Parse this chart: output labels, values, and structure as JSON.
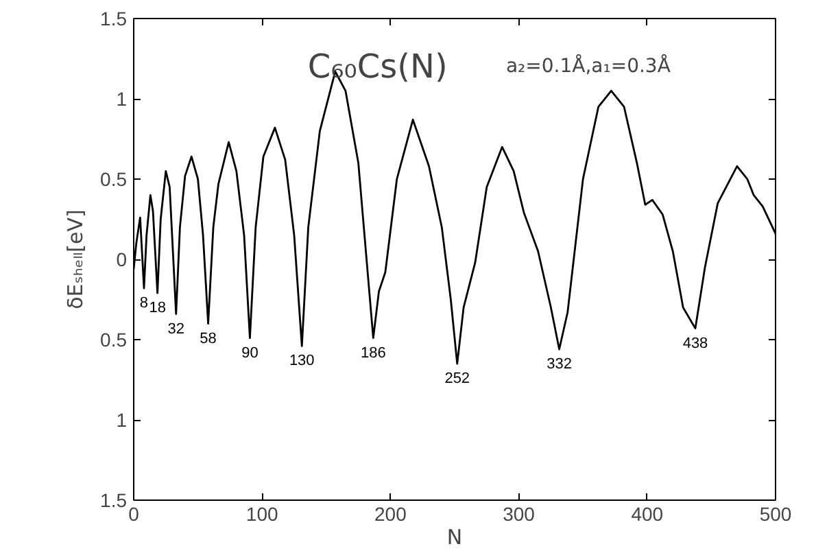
{
  "chart_data": {
    "type": "line",
    "title": "C₆₀Cs(N)",
    "xlabel": "N",
    "ylabel": "δEₛₕₑₗₗ[eV]",
    "xlim": [
      0,
      500
    ],
    "ylim": [
      -1.5,
      1.5
    ],
    "xticks": [
      0,
      100,
      200,
      300,
      400,
      500
    ],
    "yticks": [
      {
        "value": -1.5,
        "label": "1.5"
      },
      {
        "value": -1,
        "label": "1"
      },
      {
        "value": -0.5,
        "label": "0.5"
      },
      0,
      0.5,
      1,
      1.5
    ],
    "grid": false,
    "marker": "none",
    "line_style": "solid",
    "series": [
      {
        "color": "#000000",
        "x": [
          0,
          2,
          5,
          8,
          10,
          13,
          15,
          18.5,
          21,
          25,
          28,
          33,
          36,
          40,
          45,
          50,
          54,
          58,
          62,
          66,
          74,
          80,
          86,
          90.5,
          95,
          101,
          110,
          118,
          125,
          131,
          136,
          145,
          157,
          165,
          175,
          186.6,
          191,
          196,
          205,
          217.5,
          230,
          240,
          247,
          252,
          257,
          266,
          275,
          287,
          296,
          304,
          315,
          325,
          331.5,
          338,
          350,
          362,
          372,
          382,
          392,
          398.5,
          404,
          412,
          420,
          428,
          437.5,
          445,
          455,
          470,
          478,
          483,
          490,
          500
        ],
        "values": [
          -0.06,
          0.1,
          0.26,
          -0.18,
          0.15,
          0.4,
          0.3,
          -0.21,
          0.25,
          0.55,
          0.45,
          -0.34,
          0.2,
          0.52,
          0.64,
          0.5,
          0.15,
          -0.4,
          0.2,
          0.47,
          0.73,
          0.55,
          0.15,
          -0.49,
          0.2,
          0.64,
          0.82,
          0.62,
          0.15,
          -0.54,
          0.2,
          0.8,
          1.17,
          1.05,
          0.6,
          -0.49,
          -0.2,
          -0.08,
          0.5,
          0.87,
          0.58,
          0.2,
          -0.25,
          -0.65,
          -0.3,
          -0.02,
          0.45,
          0.7,
          0.55,
          0.29,
          0.05,
          -0.3,
          -0.56,
          -0.33,
          0.5,
          0.95,
          1.05,
          0.95,
          0.6,
          0.34,
          0.37,
          0.28,
          0.05,
          -0.3,
          -0.43,
          -0.05,
          0.35,
          0.58,
          0.5,
          0.4,
          0.33,
          0.16
        ]
      }
    ],
    "annotations": [
      "a₂=0.1Å,a₁=0.3Å",
      {
        "text": "8",
        "x": 8,
        "y": -0.18
      },
      {
        "text": "18",
        "x": 18.5,
        "y": -0.21
      },
      {
        "text": "32",
        "x": 33,
        "y": -0.34
      },
      {
        "text": "58",
        "x": 58,
        "y": -0.4
      },
      {
        "text": "90",
        "x": 90.5,
        "y": -0.49
      },
      {
        "text": "130",
        "x": 131,
        "y": -0.54
      },
      {
        "text": "186",
        "x": 186.6,
        "y": -0.49
      },
      {
        "text": "252",
        "x": 252,
        "y": -0.65
      },
      {
        "text": "332",
        "x": 331.5,
        "y": -0.56
      },
      {
        "text": "438",
        "x": 437.5,
        "y": -0.43
      }
    ]
  }
}
